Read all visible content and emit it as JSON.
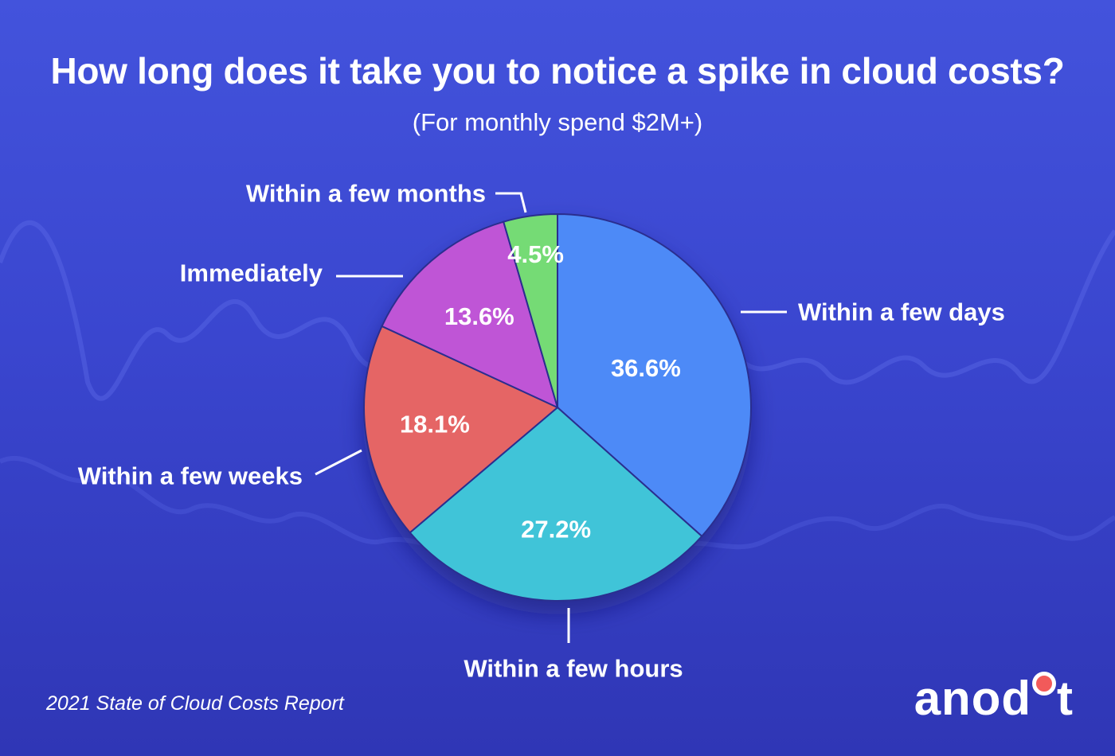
{
  "header": {
    "title": "How long does it take you to notice a spike in cloud costs?",
    "subtitle": "(For monthly spend $2M+)"
  },
  "footer": {
    "source": "2021 State of Cloud Costs Report"
  },
  "brand": {
    "logo_text_left": "anod",
    "logo_text_right": "t"
  },
  "colors": {
    "background_top": "#4353dc",
    "background_bottom": "#2f36b5",
    "slice_outline": "#2a2f8f",
    "text": "#ffffff"
  },
  "chart_data": {
    "type": "pie",
    "title": "How long does it take you to notice a spike in cloud costs?",
    "subtitle": "(For monthly spend $2M+)",
    "start": "12 o'clock",
    "direction": "clockwise",
    "legend": "none",
    "slices": [
      {
        "label": "Within a few days",
        "value": 36.6,
        "value_label": "36.6%",
        "color": "#4d8af7"
      },
      {
        "label": "Within a few hours",
        "value": 27.2,
        "value_label": "27.2%",
        "color": "#41c4d8"
      },
      {
        "label": "Within a few weeks",
        "value": 18.1,
        "value_label": "18.1%",
        "color": "#e56565"
      },
      {
        "label": "Immediately",
        "value": 13.6,
        "value_label": "13.6%",
        "color": "#bf55d6"
      },
      {
        "label": "Within a few months",
        "value": 4.5,
        "value_label": "4.5%",
        "color": "#74db74"
      }
    ]
  }
}
